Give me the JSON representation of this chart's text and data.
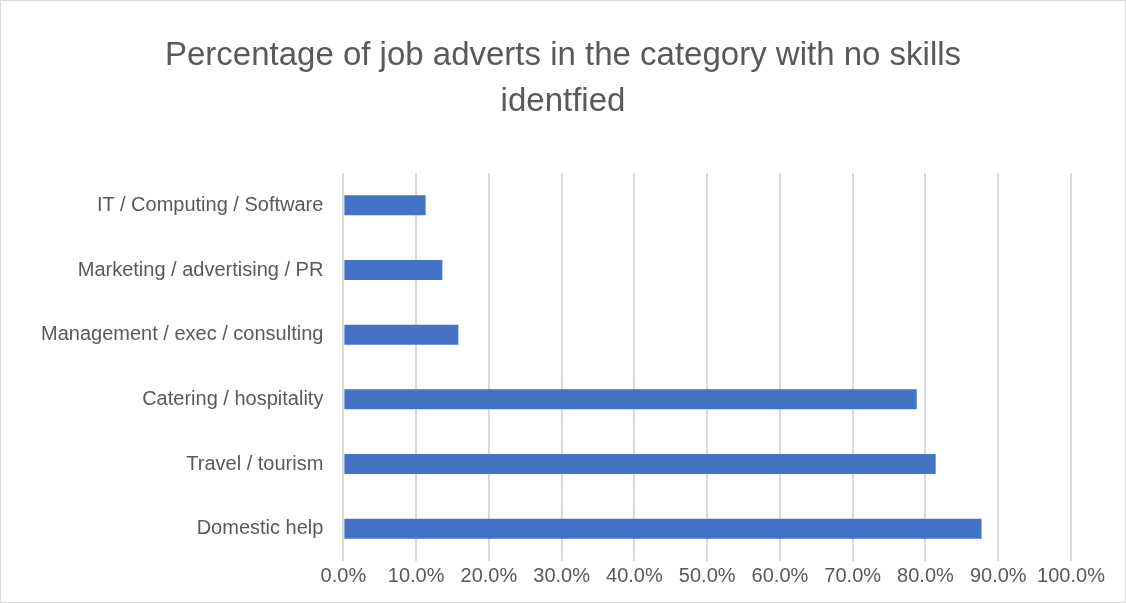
{
  "chart_data": {
    "type": "bar",
    "orientation": "horizontal",
    "title": "Percentage of job adverts in the category with no skills identfied",
    "categories": [
      "IT / Computing / Software",
      "Marketing / advertising / PR",
      "Management / exec / consulting",
      "Catering / hospitality",
      "Travel / tourism",
      "Domestic help"
    ],
    "values": [
      11.3,
      13.6,
      15.8,
      78.8,
      81.4,
      87.7
    ],
    "color": "#4472c4",
    "xlim": [
      0,
      100
    ],
    "xticks": [
      {
        "value": 0,
        "label": "0.0%"
      },
      {
        "value": 10,
        "label": "10.0%"
      },
      {
        "value": 20,
        "label": "20.0%"
      },
      {
        "value": 30,
        "label": "30.0%"
      },
      {
        "value": 40,
        "label": "40.0%"
      },
      {
        "value": 50,
        "label": "50.0%"
      },
      {
        "value": 60,
        "label": "60.0%"
      },
      {
        "value": 70,
        "label": "70.0%"
      },
      {
        "value": 80,
        "label": "80.0%"
      },
      {
        "value": 90,
        "label": "90.0%"
      },
      {
        "value": 100,
        "label": "100.0%"
      }
    ],
    "grid": "x",
    "legend": false
  }
}
